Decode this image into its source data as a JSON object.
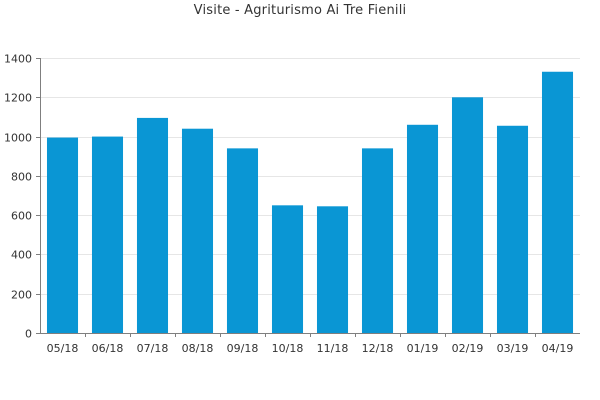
{
  "chart_data": {
    "type": "bar",
    "title": "Visite - Agriturismo Ai Tre Fienili",
    "xlabel": "",
    "ylabel": "",
    "categories": [
      "05/18",
      "06/18",
      "07/18",
      "08/18",
      "09/18",
      "10/18",
      "11/18",
      "12/18",
      "01/19",
      "02/19",
      "03/19",
      "04/19"
    ],
    "values": [
      995,
      1000,
      1095,
      1040,
      940,
      650,
      645,
      940,
      1060,
      1200,
      1055,
      1330
    ],
    "ylim": [
      0,
      1400
    ],
    "yticks": [
      0,
      200,
      400,
      600,
      800,
      1000,
      1200,
      1400
    ],
    "grid": true,
    "legend": "none",
    "colors": {
      "bar": "#0a96d4",
      "grid": "#e6e6e6",
      "axis": "#7f7f7f"
    }
  }
}
